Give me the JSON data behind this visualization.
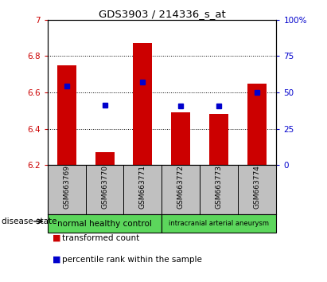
{
  "title": "GDS3903 / 214336_s_at",
  "samples": [
    "GSM663769",
    "GSM663770",
    "GSM663771",
    "GSM663772",
    "GSM663773",
    "GSM663774"
  ],
  "bar_bottoms": [
    6.2,
    6.2,
    6.2,
    6.2,
    6.2,
    6.2
  ],
  "bar_tops": [
    6.75,
    6.27,
    6.87,
    6.49,
    6.48,
    6.65
  ],
  "bar_color": "#cc0000",
  "blue_values": [
    6.635,
    6.53,
    6.655,
    6.525,
    6.525,
    6.6
  ],
  "blue_color": "#0000cc",
  "ylim_left": [
    6.2,
    7.0
  ],
  "ylim_right": [
    0,
    100
  ],
  "yticks_left": [
    6.2,
    6.4,
    6.6,
    6.8,
    7.0
  ],
  "ytick_labels_left": [
    "6.2",
    "6.4",
    "6.6",
    "6.8",
    "7"
  ],
  "yticks_right": [
    0,
    25,
    50,
    75,
    100
  ],
  "ytick_labels_right": [
    "0",
    "25",
    "50",
    "75",
    "100%"
  ],
  "grid_values": [
    6.4,
    6.6,
    6.8
  ],
  "groups": [
    {
      "label": "normal healthy control",
      "start": 0,
      "end": 3,
      "color": "#5cd65c"
    },
    {
      "label": "intracranial arterial aneurysm",
      "start": 3,
      "end": 6,
      "color": "#5cd65c"
    }
  ],
  "disease_state_label": "disease state",
  "legend_items": [
    {
      "color": "#cc0000",
      "label": "transformed count"
    },
    {
      "color": "#0000cc",
      "label": "percentile rank within the sample"
    }
  ],
  "bar_width": 0.5,
  "left_axis_color": "#cc0000",
  "right_axis_color": "#0000cc",
  "tick_area_bg": "#c0c0c0"
}
